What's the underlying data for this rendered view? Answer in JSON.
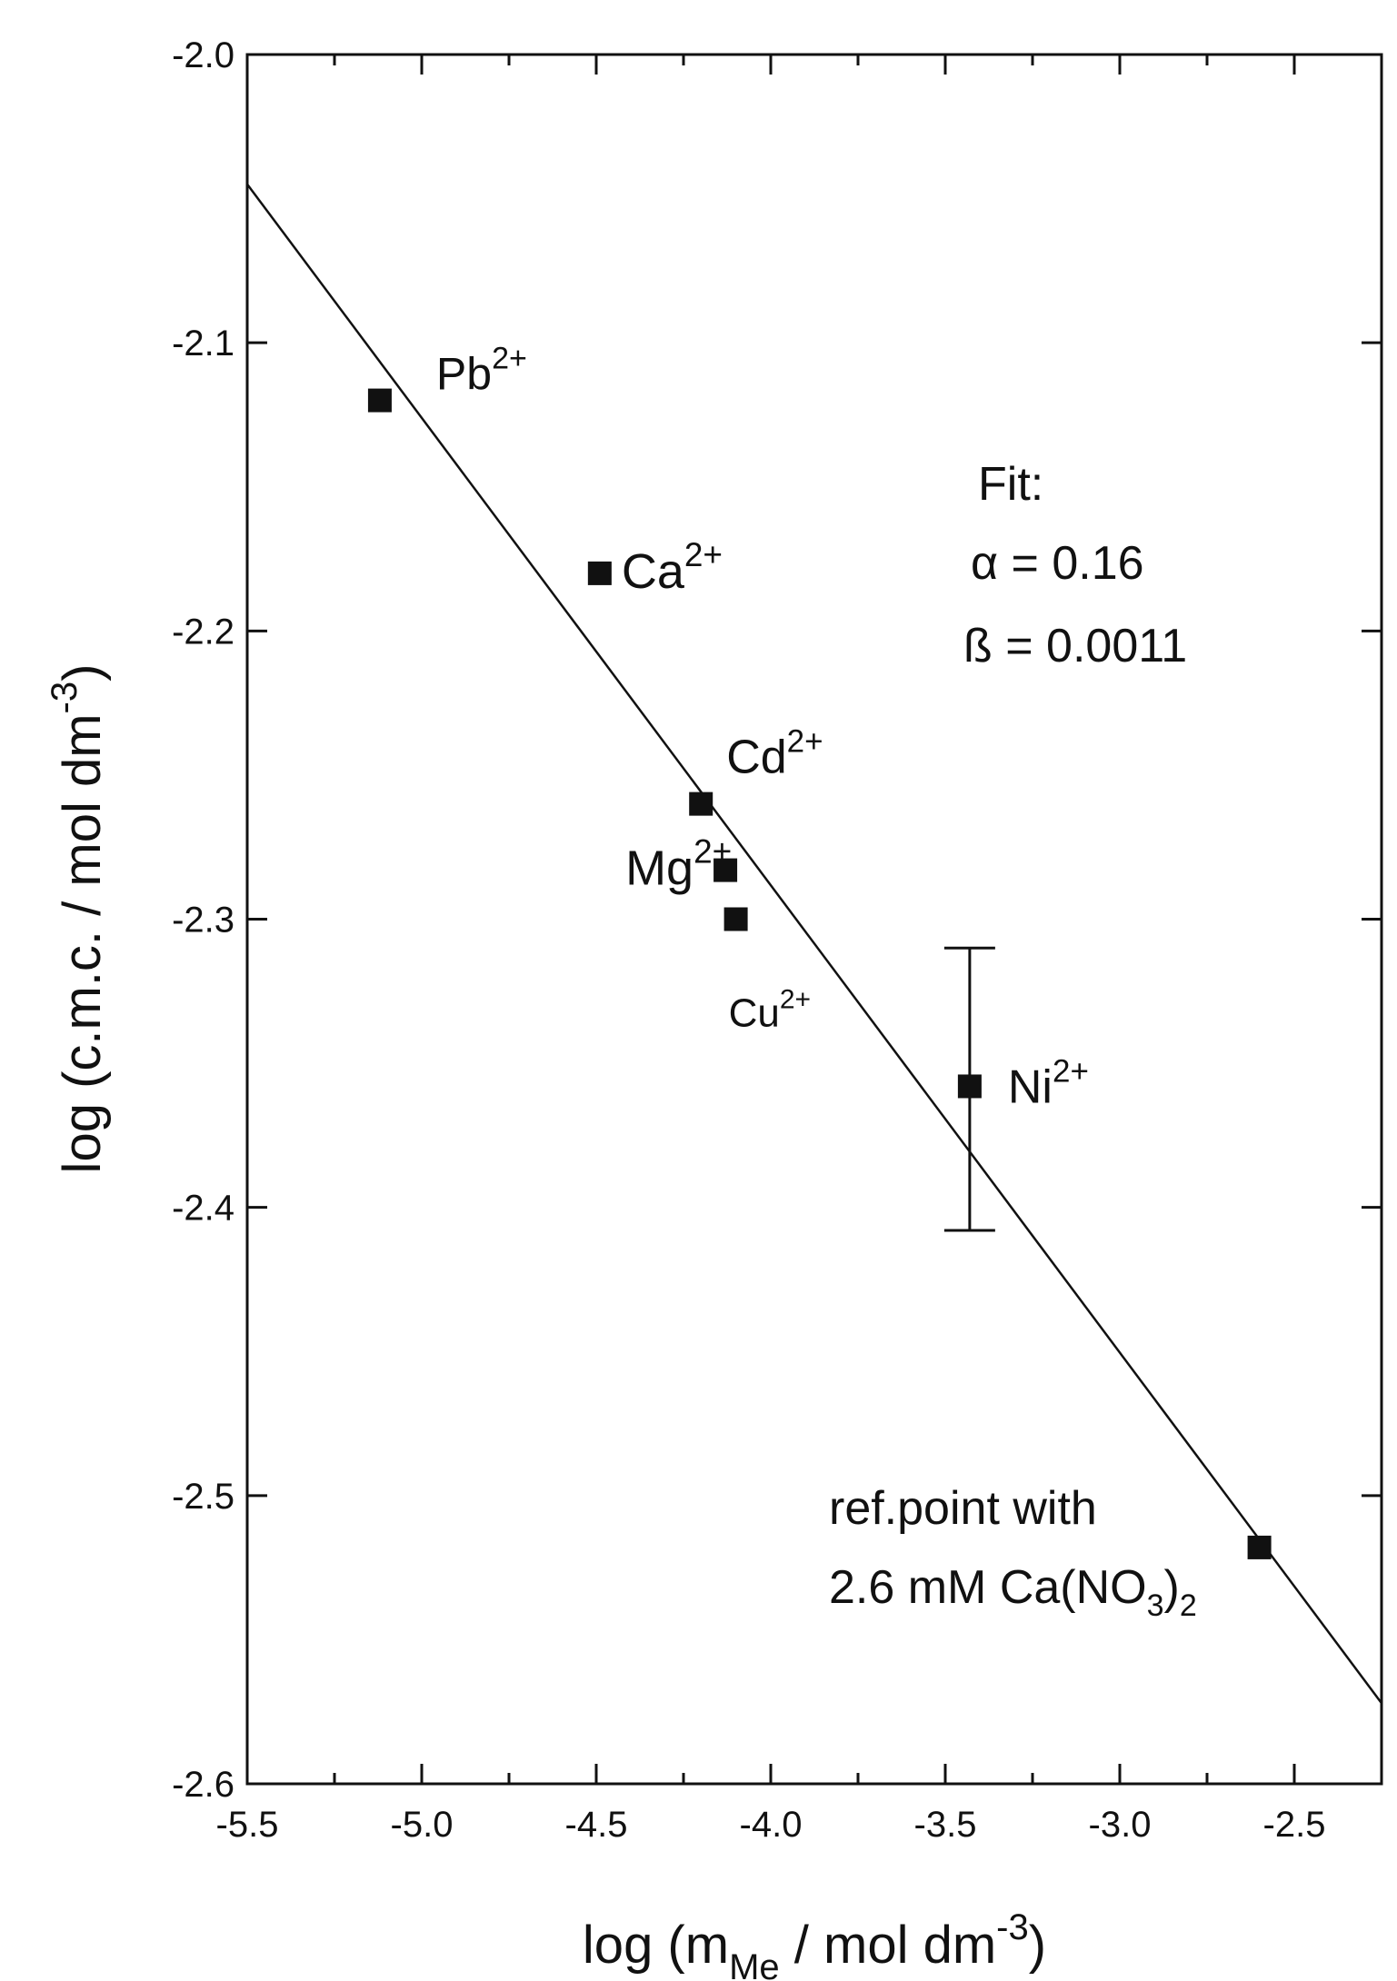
{
  "chart_data": {
    "type": "scatter",
    "title": "",
    "xlabel": {
      "prefix": "log (m",
      "sub": "Me",
      "middle": " / mol dm",
      "sup": "-3",
      "suffix": ")"
    },
    "ylabel": {
      "prefix": "log (c.m.c. / mol dm",
      "sup": "-3",
      "suffix": ")"
    },
    "xlim": [
      -5.5,
      -2.25
    ],
    "ylim": [
      -2.6,
      -2.0
    ],
    "xticks": [
      -5.5,
      -5.0,
      -4.5,
      -4.0,
      -3.5,
      -3.0,
      -2.5
    ],
    "xtick_labels": [
      "-5.5",
      "-5.0",
      "-4.5",
      "-4.0",
      "-3.5",
      "-3.0",
      "-2.5"
    ],
    "yticks": [
      -2.0,
      -2.1,
      -2.2,
      -2.3,
      -2.4,
      -2.5,
      -2.6
    ],
    "ytick_labels": [
      "-2.0",
      "-2.1",
      "-2.2",
      "-2.3",
      "-2.4",
      "-2.5",
      "-2.6"
    ],
    "grid": false,
    "points": [
      {
        "ion": "Pb",
        "charge": "2+",
        "x": -5.12,
        "y": -2.12
      },
      {
        "ion": "Ca",
        "charge": "2+",
        "x": -4.49,
        "y": -2.18
      },
      {
        "ion": "Cd",
        "charge": "2+",
        "x": -4.2,
        "y": -2.26
      },
      {
        "ion": "Mg",
        "charge": "2+",
        "x": -4.13,
        "y": -2.283
      },
      {
        "ion": "Cu",
        "charge": "2+",
        "x": -4.1,
        "y": -2.3
      },
      {
        "ion": "Ni",
        "charge": "2+",
        "x": -3.43,
        "y": -2.358,
        "error_bar": [
          -2.408,
          -2.31
        ]
      },
      {
        "ion": "",
        "charge": "",
        "x": -2.6,
        "y": -2.518
      }
    ],
    "fit_line": {
      "x": [
        -5.5,
        -2.25
      ],
      "y": [
        -2.045,
        -2.572
      ]
    },
    "annotation": {
      "fit_title": "Fit:",
      "alpha": "α = 0.16",
      "beta": "ß = 0.0011"
    },
    "ref_note": {
      "line1": "ref.point with",
      "line2_prefix": "2.6 mM Ca(NO",
      "line2_sub1": "3",
      "line2_paren": ")",
      "line2_sub2": "2"
    }
  }
}
